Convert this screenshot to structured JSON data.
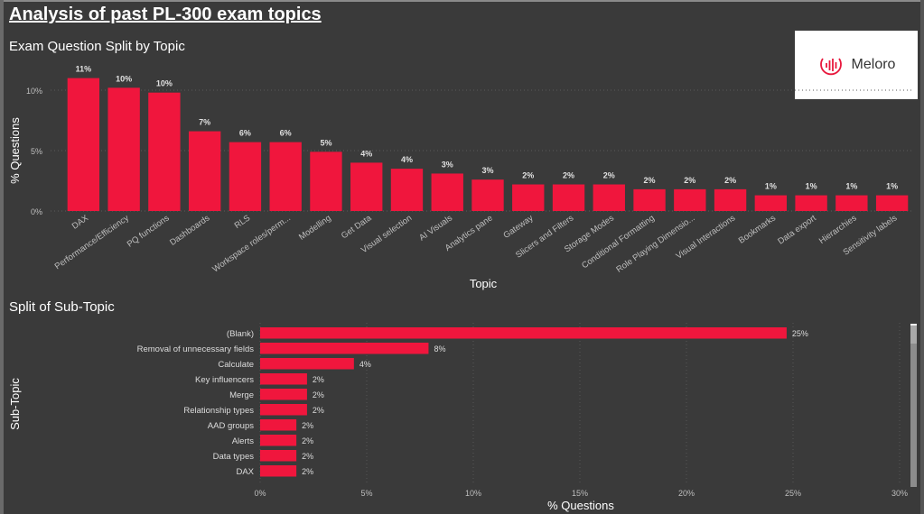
{
  "page": {
    "title": "Analysis of past PL-300 exam topics"
  },
  "logo": {
    "name": "Meloro",
    "icon": "sound-wave-circle-icon",
    "accent": "#e8173c"
  },
  "colors": {
    "bar": "#f0163d",
    "background": "#3a3a3a",
    "text": "#ffffff",
    "tick": "#bfbfbf"
  },
  "chart_data": [
    {
      "type": "bar",
      "orientation": "vertical",
      "title": "Exam Question Split by Topic",
      "xlabel": "Topic",
      "ylabel": "% Questions",
      "ylim": [
        0,
        11.5
      ],
      "yticks": [
        "0%",
        "5%",
        "10%"
      ],
      "ytick_values": [
        0,
        5,
        10
      ],
      "grid": true,
      "categories": [
        "DAX",
        "Performance/Efficiency",
        "PQ functions",
        "Dashboards",
        "RLS",
        "Workspace roles/perm...",
        "Modelling",
        "Get Data",
        "Visual selection",
        "AI Visuals",
        "Analytics pane",
        "Gateway",
        "Slicers and Filters",
        "Storage Modes",
        "Conditional Formatting",
        "Role Playing Dimensio...",
        "Visual Interactions",
        "Bookmarks",
        "Data export",
        "Hierarchies",
        "Sensitivity labels"
      ],
      "values": [
        11.0,
        10.2,
        9.8,
        6.6,
        5.7,
        5.7,
        4.9,
        4.0,
        3.5,
        3.1,
        2.6,
        2.2,
        2.2,
        2.2,
        1.8,
        1.8,
        1.8,
        1.3,
        1.3,
        1.3,
        1.3
      ],
      "data_labels": [
        "11%",
        "10%",
        "10%",
        "7%",
        "6%",
        "6%",
        "5%",
        "4%",
        "4%",
        "3%",
        "3%",
        "2%",
        "2%",
        "2%",
        "2%",
        "2%",
        "2%",
        "1%",
        "1%",
        "1%",
        "1%"
      ]
    },
    {
      "type": "bar",
      "orientation": "horizontal",
      "title": "Split of Sub-Topic",
      "xlabel": "% Questions",
      "ylabel": "Sub-Topic",
      "xlim": [
        0,
        30
      ],
      "xticks": [
        "0%",
        "5%",
        "10%",
        "15%",
        "20%",
        "25%",
        "30%"
      ],
      "xtick_values": [
        0,
        5,
        10,
        15,
        20,
        25,
        30
      ],
      "grid": true,
      "categories": [
        "(Blank)",
        "Removal of unnecessary fields",
        "Calculate",
        "Key influencers",
        "Merge",
        "Relationship types",
        "AAD groups",
        "Alerts",
        "Data types",
        "DAX"
      ],
      "values": [
        24.7,
        7.9,
        4.4,
        2.2,
        2.2,
        2.2,
        1.7,
        1.7,
        1.7,
        1.7
      ],
      "data_labels": [
        "25%",
        "8%",
        "4%",
        "2%",
        "2%",
        "2%",
        "2%",
        "2%",
        "2%",
        "2%"
      ]
    }
  ]
}
